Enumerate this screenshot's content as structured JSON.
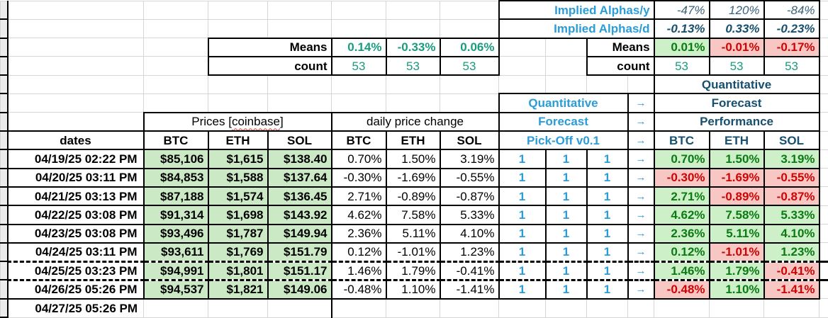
{
  "colors": {
    "accent_light_blue": "#2b9cd8",
    "accent_dark_blue": "#174f6e",
    "teal_stat": "#1a9b80",
    "positive_text": "#0a7b12",
    "positive_bg": "#cdf0c9",
    "negative_text": "#cc0404",
    "negative_bg": "#f9c7c3",
    "price_bg": "#cce9c6"
  },
  "implied": {
    "y_label": "Implied Alphas/y",
    "y_values": [
      "-47%",
      "120%",
      "-84%"
    ],
    "d_label": "Implied Alphas/d",
    "d_values": [
      "-0.13%",
      "0.33%",
      "-0.23%"
    ]
  },
  "left_stats": {
    "means_label": "Means",
    "means": [
      "0.14%",
      "-0.33%",
      "0.06%"
    ],
    "count_label": "count",
    "counts": [
      "53",
      "53",
      "53"
    ]
  },
  "right_stats": {
    "means_label": "Means",
    "means": [
      "0.01%",
      "-0.01%",
      "-0.17%"
    ],
    "count_label": "count",
    "counts": [
      "53",
      "53",
      "53"
    ]
  },
  "forecast_block": {
    "line1": "Quantitative",
    "line2": "Forecast",
    "line3": "Pick-Off v0.1",
    "arrow": "→"
  },
  "performance_block": {
    "line1": "Quantitative",
    "line2": "Forecast",
    "line3": "Performance",
    "columns": [
      "BTC",
      "ETH",
      "SOL"
    ]
  },
  "price_table": {
    "dates_header": "dates",
    "prices_header_prefix": "Prices [",
    "prices_header_word": "coinbase",
    "prices_header_suffix": "]",
    "price_columns": [
      "BTC",
      "ETH",
      "SOL"
    ],
    "change_header": "daily price change",
    "change_columns": [
      "BTC",
      "ETH",
      "SOL"
    ]
  },
  "rows": [
    {
      "date": "04/19/25 02:22 PM",
      "prices": [
        "$85,106",
        "$1,615",
        "$138.40"
      ],
      "changes": [
        "0.70%",
        "1.50%",
        "3.19%"
      ],
      "picks": [
        "1",
        "1",
        "1"
      ],
      "arrow": "→",
      "perf": [
        "0.70%",
        "1.50%",
        "3.19%"
      ]
    },
    {
      "date": "04/20/25 03:11 PM",
      "prices": [
        "$84,853",
        "$1,588",
        "$137.64"
      ],
      "changes": [
        "-0.30%",
        "-1.69%",
        "-0.55%"
      ],
      "picks": [
        "1",
        "1",
        "1"
      ],
      "arrow": "→",
      "perf": [
        "-0.30%",
        "-1.69%",
        "-0.55%"
      ]
    },
    {
      "date": "04/21/25 03:13 PM",
      "prices": [
        "$87,188",
        "$1,574",
        "$136.45"
      ],
      "changes": [
        "2.71%",
        "-0.89%",
        "-0.87%"
      ],
      "picks": [
        "1",
        "1",
        "1"
      ],
      "arrow": "→",
      "perf": [
        "2.71%",
        "-0.89%",
        "-0.87%"
      ]
    },
    {
      "date": "04/22/25 03:08 PM",
      "prices": [
        "$91,314",
        "$1,698",
        "$143.92"
      ],
      "changes": [
        "4.62%",
        "7.58%",
        "5.33%"
      ],
      "picks": [
        "1",
        "1",
        "1"
      ],
      "arrow": "→",
      "perf": [
        "4.62%",
        "7.58%",
        "5.33%"
      ]
    },
    {
      "date": "04/23/25 03:08 PM",
      "prices": [
        "$93,496",
        "$1,787",
        "$149.94"
      ],
      "changes": [
        "2.36%",
        "5.11%",
        "4.10%"
      ],
      "picks": [
        "1",
        "1",
        "1"
      ],
      "arrow": "→",
      "perf": [
        "2.36%",
        "5.11%",
        "4.10%"
      ]
    },
    {
      "date": "04/24/25 03:11 PM",
      "prices": [
        "$93,611",
        "$1,769",
        "$151.79"
      ],
      "changes": [
        "0.12%",
        "-1.01%",
        "1.23%"
      ],
      "picks": [
        "1",
        "1",
        "1"
      ],
      "arrow": "→",
      "perf": [
        "0.12%",
        "-1.01%",
        "1.23%"
      ]
    },
    {
      "date": "04/25/25 03:23 PM",
      "prices": [
        "$94,991",
        "$1,801",
        "$151.17"
      ],
      "changes": [
        "1.46%",
        "1.79%",
        "-0.41%"
      ],
      "picks": [
        "1",
        "1",
        "1"
      ],
      "arrow": "→",
      "perf": [
        "1.46%",
        "1.79%",
        "-0.41%"
      ]
    },
    {
      "date": "04/26/25 05:26 PM",
      "prices": [
        "$94,537",
        "$1,821",
        "$149.06"
      ],
      "changes": [
        "-0.48%",
        "1.10%",
        "-1.41%"
      ],
      "picks": [
        "1",
        "1",
        "1"
      ],
      "arrow": "→",
      "perf": [
        "-0.48%",
        "1.10%",
        "-1.41%"
      ]
    }
  ],
  "trailing_row": {
    "date": "04/27/25 05:26 PM"
  }
}
